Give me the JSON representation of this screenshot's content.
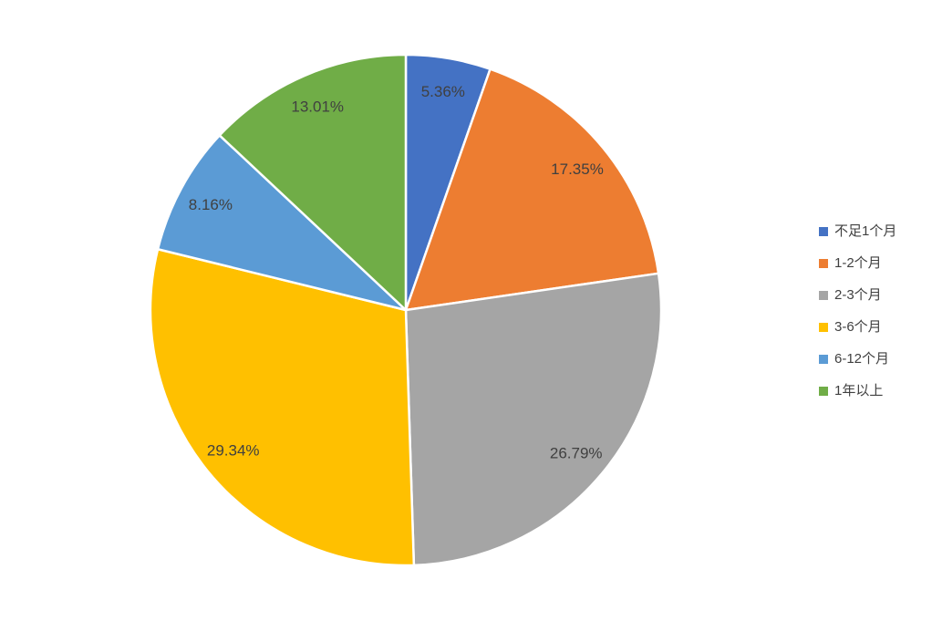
{
  "chart_data": {
    "type": "pie",
    "title": "",
    "categories": [
      "不足1个月",
      "1-2个月",
      "2-3个月",
      "3-6个月",
      "6-12个月",
      "1年以上"
    ],
    "values": [
      5.36,
      17.35,
      26.79,
      29.34,
      8.16,
      13.01
    ],
    "labels": [
      "5.36%",
      "17.35%",
      "26.79%",
      "29.34%",
      "8.16%",
      "13.01%"
    ],
    "colors": [
      "#4472C4",
      "#ED7D31",
      "#A5A5A5",
      "#FFC000",
      "#5B9BD5",
      "#70AD47"
    ],
    "legend_position": "right",
    "start_angle_deg": 0,
    "direction": "clockwise",
    "label_color": "#404040",
    "slice_border_color": "#FFFFFF",
    "background_color": "#FFFFFF"
  }
}
